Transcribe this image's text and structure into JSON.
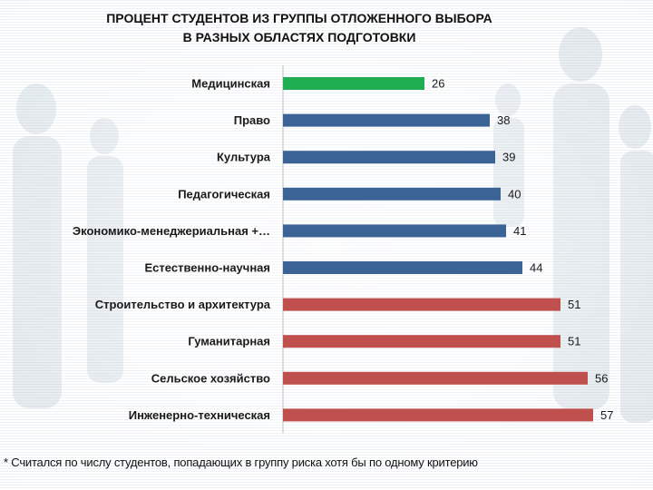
{
  "chart_data": {
    "type": "bar",
    "orientation": "horizontal",
    "title_lines": [
      "ПРОЦЕНТ СТУДЕНТОВ ИЗ ГРУППЫ ОТЛОЖЕННОГО ВЫБОРА",
      "В РАЗНЫХ ОБЛАСТЯХ ПОДГОТОВКИ"
    ],
    "categories": [
      "Медицинская",
      "Право",
      "Культура",
      "Педагогическая",
      "Экономико-менеджериальная +…",
      "Естественно-научная",
      "Строительство и архитектура",
      "Гуманитарная",
      "Сельское хозяйство",
      "Инженерно-техническая"
    ],
    "values": [
      26,
      38,
      39,
      40,
      41,
      44,
      51,
      51,
      56,
      57
    ],
    "bar_colors": [
      "#1fae52",
      "#3c6395",
      "#3c6395",
      "#3c6395",
      "#3c6395",
      "#3c6395",
      "#c0504d",
      "#c0504d",
      "#c0504d",
      "#c0504d"
    ],
    "xlim": [
      0,
      60
    ],
    "xlabel": "",
    "ylabel": "",
    "grid": false,
    "legend": "none",
    "data_labels": true
  },
  "footnote": "* Считался по числу студентов, попадающих в группу риска хотя бы по одному критерию"
}
